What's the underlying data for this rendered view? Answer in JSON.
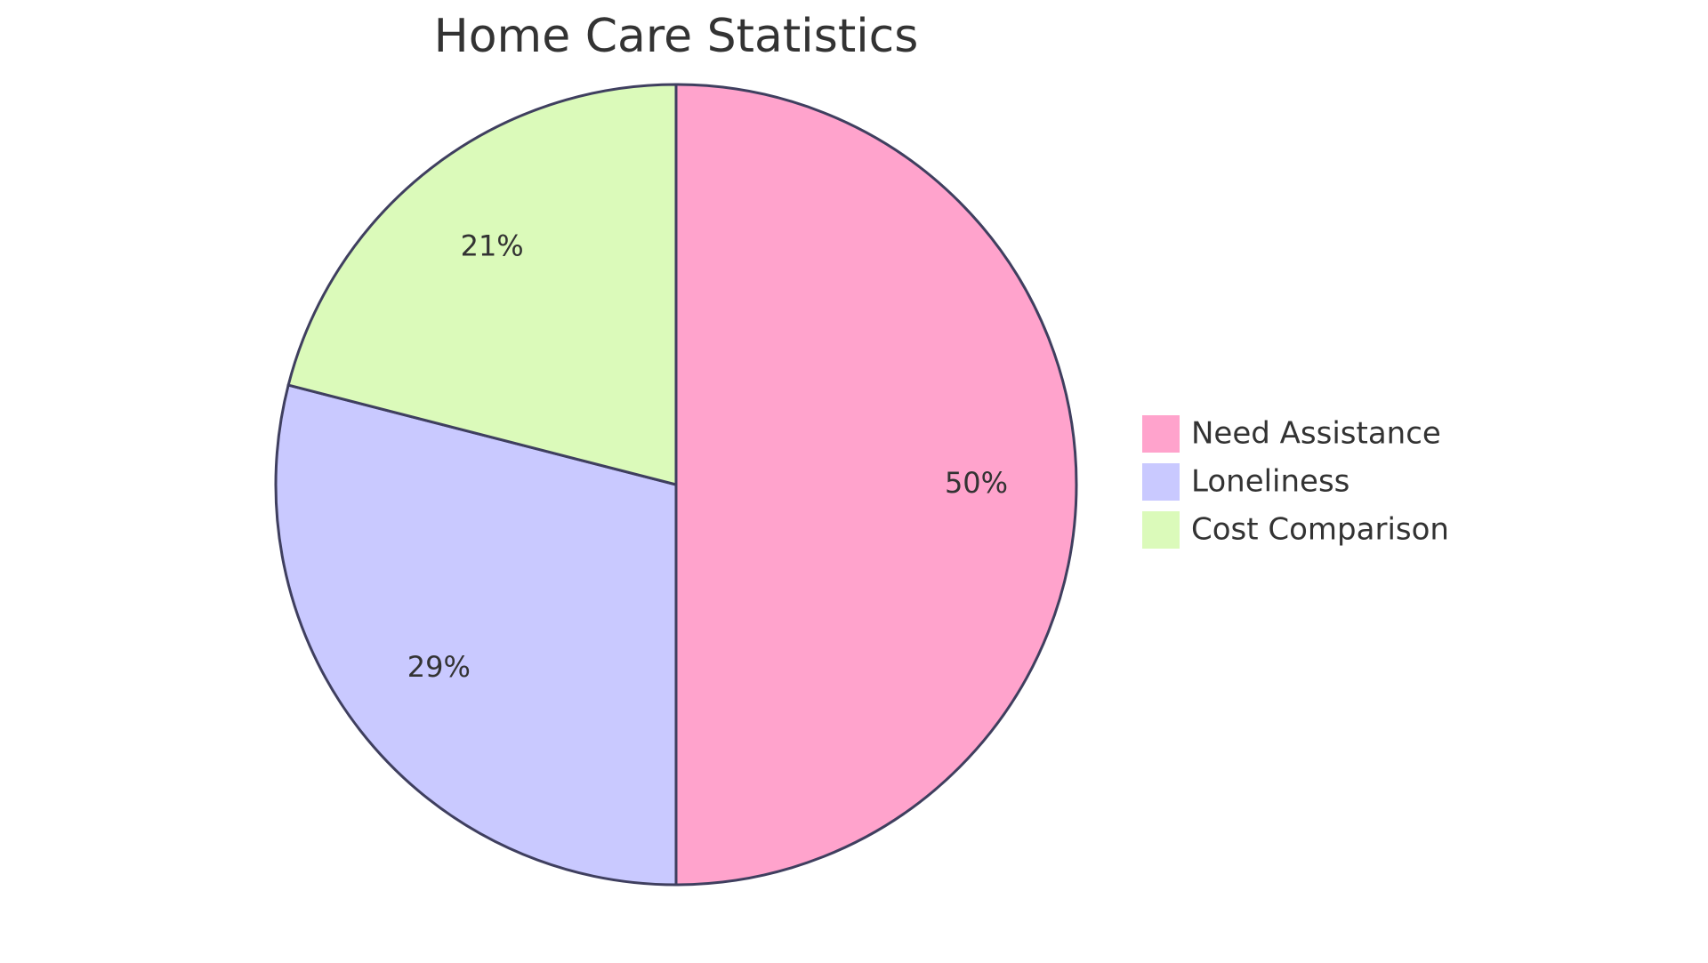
{
  "chart_data": {
    "type": "pie",
    "title": "Home Care Statistics",
    "slices": [
      {
        "label": "Need Assistance",
        "value": 50,
        "display": "50%",
        "color": "#FFA3CC"
      },
      {
        "label": "Loneliness",
        "value": 29,
        "display": "29%",
        "color": "#C9C9FF"
      },
      {
        "label": "Cost Comparison",
        "value": 21,
        "display": "21%",
        "color": "#DBFABA"
      }
    ],
    "legend_placement": "right"
  }
}
